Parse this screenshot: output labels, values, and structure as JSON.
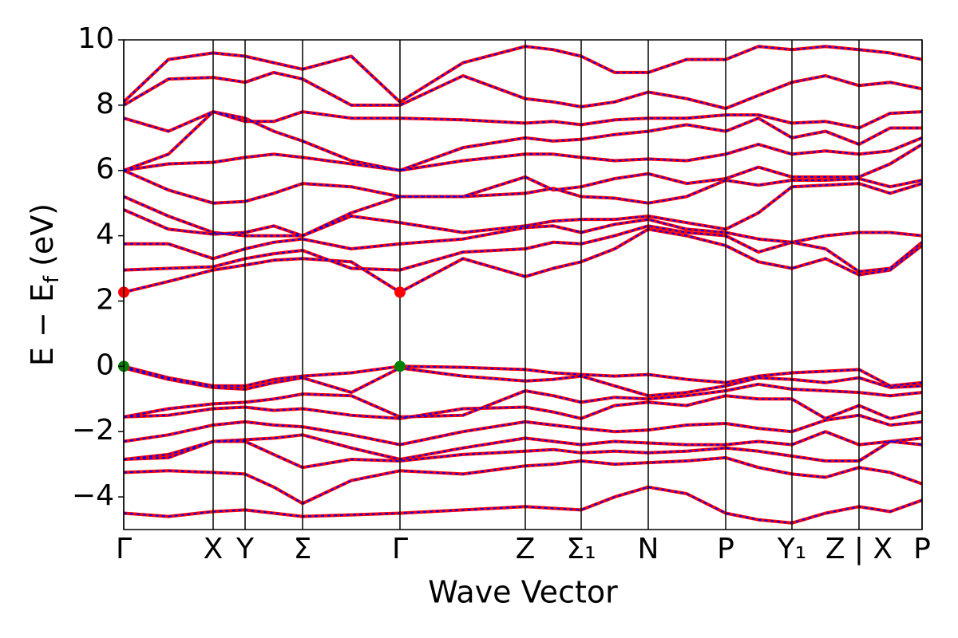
{
  "chart_data": {
    "type": "line",
    "xlabel": "Wave Vector",
    "ylabel": [
      "E − E",
      "f",
      " (eV)"
    ],
    "xlim": [
      0,
      1.0
    ],
    "ylim": [
      -5,
      10
    ],
    "xticks": [
      {
        "value": 0,
        "label": "Γ"
      },
      {
        "value": 0.112,
        "label": "X"
      },
      {
        "value": 0.152,
        "label": "Y"
      },
      {
        "value": 0.224,
        "label": "Σ"
      },
      {
        "value": 0.346,
        "label": "Γ"
      },
      {
        "value": 0.503,
        "label": "Z"
      },
      {
        "value": 0.573,
        "label": "Σ₁"
      },
      {
        "value": 0.657,
        "label": "N"
      },
      {
        "value": 0.754,
        "label": "P"
      },
      {
        "value": 0.837,
        "label": "Y₁"
      },
      {
        "value": 0.921,
        "label": "Z | X"
      },
      {
        "value": 1.0,
        "label": "P"
      }
    ],
    "yticks": [
      {
        "value": -4,
        "label": "−4"
      },
      {
        "value": -2,
        "label": "−2"
      },
      0,
      2,
      4,
      6,
      8,
      10
    ],
    "vlines": true,
    "x": [
      0,
      0.056,
      0.112,
      0.152,
      0.188,
      0.224,
      0.285,
      0.346,
      0.425,
      0.503,
      0.538,
      0.573,
      0.615,
      0.657,
      0.705,
      0.754,
      0.795,
      0.837,
      0.879,
      0.921,
      0.96,
      1.0
    ],
    "series": [
      {
        "color": "#ff0000",
        "style": "solid",
        "bands": [
          [
            0,
            -0.35,
            -0.6,
            -0.6,
            -0.4,
            -0.3,
            -0.2,
            0,
            -0.03,
            -0.1,
            -0.2,
            -0.25,
            -0.3,
            -0.25,
            -0.4,
            -0.5,
            -0.3,
            -0.2,
            -0.15,
            -0.1,
            -0.6,
            -0.5
          ],
          [
            -0.05,
            -0.4,
            -0.65,
            -0.7,
            -0.5,
            -0.35,
            -0.8,
            -0.05,
            -0.3,
            -0.45,
            -0.4,
            -0.3,
            -0.6,
            -0.9,
            -0.8,
            -0.6,
            -0.35,
            -0.4,
            -0.5,
            -0.35,
            -0.65,
            -0.6
          ],
          [
            -1.55,
            -1.3,
            -1.15,
            -1.1,
            -1.0,
            -0.85,
            -0.9,
            -1.55,
            -1.5,
            -0.75,
            -0.9,
            -1.1,
            -0.95,
            -1.0,
            -0.9,
            -0.75,
            -0.55,
            -0.7,
            -0.75,
            -0.8,
            -0.9,
            -0.8
          ],
          [
            -1.55,
            -1.5,
            -1.3,
            -1.25,
            -1.35,
            -1.3,
            -1.5,
            -1.6,
            -1.3,
            -1.25,
            -1.4,
            -1.6,
            -1.2,
            -1.1,
            -1.2,
            -0.9,
            -1.0,
            -1.0,
            -1.6,
            -1.2,
            -1.6,
            -1.4
          ],
          [
            -2.3,
            -2.1,
            -1.8,
            -1.7,
            -1.8,
            -1.85,
            -2.1,
            -2.4,
            -2.0,
            -1.7,
            -1.8,
            -1.9,
            -2.0,
            -1.95,
            -1.8,
            -1.75,
            -1.9,
            -2.0,
            -1.65,
            -1.5,
            -1.8,
            -1.7
          ],
          [
            -2.85,
            -2.7,
            -2.3,
            -2.25,
            -2.2,
            -2.1,
            -2.5,
            -2.85,
            -2.5,
            -2.2,
            -2.3,
            -2.4,
            -2.3,
            -2.35,
            -2.4,
            -2.4,
            -2.3,
            -2.4,
            -2.0,
            -2.4,
            -2.3,
            -2.2
          ],
          [
            -2.85,
            -2.8,
            -2.3,
            -2.3,
            -2.7,
            -3.1,
            -2.85,
            -2.9,
            -2.7,
            -2.6,
            -2.55,
            -2.65,
            -2.6,
            -2.65,
            -2.6,
            -2.5,
            -2.6,
            -2.75,
            -2.9,
            -2.9,
            -2.3,
            -2.4
          ],
          [
            -3.25,
            -3.2,
            -3.25,
            -3.3,
            -3.7,
            -4.2,
            -3.5,
            -3.2,
            -3.3,
            -3.05,
            -3.0,
            -2.9,
            -3.0,
            -2.95,
            -2.9,
            -2.8,
            -3.1,
            -3.3,
            -3.4,
            -3.1,
            -3.25,
            -3.6
          ],
          [
            -4.5,
            -4.6,
            -4.45,
            -4.4,
            -4.5,
            -4.6,
            -4.55,
            -4.5,
            -4.4,
            -4.3,
            -4.35,
            -4.4,
            -4.0,
            -3.7,
            -3.9,
            -4.5,
            -4.7,
            -4.8,
            -4.5,
            -4.3,
            -4.45,
            -4.1
          ],
          [
            2.27,
            2.6,
            2.95,
            3.1,
            3.25,
            3.3,
            3.2,
            2.27,
            3.3,
            2.75,
            3.0,
            3.2,
            3.6,
            4.2,
            4.0,
            3.7,
            3.2,
            3.0,
            3.3,
            2.8,
            2.95,
            3.7
          ],
          [
            2.95,
            3.0,
            3.05,
            3.3,
            3.45,
            3.55,
            3.0,
            2.95,
            3.5,
            3.6,
            3.8,
            3.75,
            4.0,
            4.3,
            4.1,
            4.0,
            3.5,
            3.8,
            3.6,
            2.9,
            3.0,
            3.8
          ],
          [
            3.75,
            3.75,
            3.3,
            3.6,
            3.8,
            3.9,
            3.6,
            3.75,
            3.9,
            4.25,
            4.3,
            4.1,
            4.35,
            4.5,
            4.2,
            4.1,
            3.9,
            3.8,
            4.0,
            4.1,
            4.1,
            4.0
          ],
          [
            4.8,
            4.2,
            4.05,
            4.1,
            4.3,
            4.0,
            4.6,
            4.4,
            4.1,
            4.3,
            4.45,
            4.5,
            4.5,
            4.6,
            4.4,
            4.2,
            4.7,
            5.5,
            5.55,
            5.6,
            5.3,
            5.6
          ],
          [
            5.2,
            4.6,
            4.1,
            4.0,
            4.0,
            4.0,
            4.7,
            5.2,
            5.2,
            5.3,
            5.45,
            5.2,
            5.15,
            5.0,
            5.2,
            5.7,
            5.55,
            5.7,
            5.7,
            5.75,
            5.5,
            5.7
          ],
          [
            6.0,
            5.4,
            5.0,
            5.05,
            5.3,
            5.6,
            5.5,
            5.2,
            5.2,
            5.8,
            5.4,
            5.5,
            5.75,
            5.9,
            5.6,
            5.75,
            6.1,
            5.8,
            5.8,
            5.8,
            6.2,
            6.8
          ],
          [
            6.0,
            6.2,
            6.25,
            6.4,
            6.5,
            6.4,
            6.2,
            6.0,
            6.3,
            6.5,
            6.5,
            6.4,
            6.3,
            6.35,
            6.3,
            6.5,
            6.8,
            6.5,
            6.6,
            6.5,
            6.6,
            7.0
          ],
          [
            6.0,
            6.5,
            7.8,
            7.6,
            7.2,
            6.9,
            6.3,
            6.0,
            6.7,
            7.0,
            6.9,
            6.95,
            7.1,
            7.2,
            7.4,
            7.2,
            7.6,
            7.0,
            7.2,
            6.8,
            7.3,
            7.3
          ],
          [
            7.6,
            7.2,
            7.8,
            7.5,
            7.5,
            7.8,
            7.6,
            7.6,
            7.55,
            7.45,
            7.5,
            7.4,
            7.55,
            7.6,
            7.6,
            7.7,
            7.7,
            7.45,
            7.5,
            7.3,
            7.75,
            7.8
          ],
          [
            8.0,
            8.8,
            8.85,
            8.7,
            9.0,
            8.8,
            8.0,
            8.0,
            8.9,
            8.2,
            8.1,
            7.95,
            8.1,
            8.4,
            8.2,
            7.9,
            8.3,
            8.7,
            8.9,
            8.6,
            8.7,
            8.5
          ],
          [
            8.1,
            9.4,
            9.6,
            9.5,
            9.3,
            9.1,
            9.5,
            8.1,
            9.3,
            9.8,
            9.7,
            9.5,
            9.0,
            9.0,
            9.4,
            9.4,
            9.8,
            9.7,
            9.8,
            9.7,
            9.6,
            9.4
          ]
        ]
      },
      {
        "color": "#0000ff",
        "style": "dashed",
        "bands": [
          [
            0,
            -0.35,
            -0.6,
            -0.6,
            -0.4,
            -0.3,
            -0.2,
            0,
            -0.03,
            -0.1,
            -0.2,
            -0.25,
            -0.3,
            -0.25,
            -0.4,
            -0.5,
            -0.3,
            -0.2,
            -0.15,
            -0.1,
            -0.6,
            -0.5
          ],
          [
            -0.05,
            -0.4,
            -0.65,
            -0.7,
            -0.5,
            -0.35,
            -0.8,
            -0.05,
            -0.3,
            -0.45,
            -0.4,
            -0.3,
            -0.6,
            -0.9,
            -0.8,
            -0.6,
            -0.35,
            -0.4,
            -0.5,
            -0.35,
            -0.65,
            -0.6
          ],
          [
            -1.55,
            -1.3,
            -1.15,
            -1.1,
            -1.0,
            -0.85,
            -0.9,
            -1.55,
            -1.5,
            -0.75,
            -0.9,
            -1.1,
            -0.95,
            -1.0,
            -0.9,
            -0.75,
            -0.55,
            -0.7,
            -0.75,
            -0.8,
            -0.9,
            -0.8
          ],
          [
            -1.55,
            -1.5,
            -1.3,
            -1.25,
            -1.35,
            -1.3,
            -1.5,
            -1.6,
            -1.3,
            -1.25,
            -1.4,
            -1.6,
            -1.2,
            -1.1,
            -1.2,
            -0.9,
            -1.0,
            -1.0,
            -1.6,
            -1.2,
            -1.6,
            -1.4
          ],
          [
            -2.3,
            -2.1,
            -1.8,
            -1.7,
            -1.8,
            -1.85,
            -2.1,
            -2.4,
            -2.0,
            -1.7,
            -1.8,
            -1.9,
            -2.0,
            -1.95,
            -1.8,
            -1.75,
            -1.9,
            -2.0,
            -1.65,
            -1.5,
            -1.8,
            -1.7
          ],
          [
            -2.85,
            -2.7,
            -2.3,
            -2.25,
            -2.2,
            -2.1,
            -2.5,
            -2.85,
            -2.5,
            -2.2,
            -2.3,
            -2.4,
            -2.3,
            -2.35,
            -2.4,
            -2.4,
            -2.3,
            -2.4,
            -2.0,
            -2.4,
            -2.3,
            -2.2
          ],
          [
            -2.85,
            -2.8,
            -2.3,
            -2.3,
            -2.7,
            -3.1,
            -2.85,
            -2.9,
            -2.7,
            -2.6,
            -2.55,
            -2.65,
            -2.6,
            -2.65,
            -2.6,
            -2.5,
            -2.6,
            -2.75,
            -2.9,
            -2.9,
            -2.3,
            -2.4
          ],
          [
            -3.25,
            -3.2,
            -3.25,
            -3.3,
            -3.7,
            -4.2,
            -3.5,
            -3.2,
            -3.3,
            -3.05,
            -3.0,
            -2.9,
            -3.0,
            -2.95,
            -2.9,
            -2.8,
            -3.1,
            -3.3,
            -3.4,
            -3.1,
            -3.25,
            -3.6
          ],
          [
            -4.5,
            -4.6,
            -4.45,
            -4.4,
            -4.5,
            -4.6,
            -4.55,
            -4.5,
            -4.4,
            -4.3,
            -4.35,
            -4.4,
            -4.0,
            -3.7,
            -3.9,
            -4.5,
            -4.7,
            -4.8,
            -4.5,
            -4.3,
            -4.45,
            -4.1
          ],
          [
            2.27,
            2.6,
            2.95,
            3.1,
            3.25,
            3.3,
            3.2,
            2.27,
            3.3,
            2.75,
            3.0,
            3.2,
            3.6,
            4.2,
            4.0,
            3.7,
            3.2,
            3.0,
            3.3,
            2.8,
            2.95,
            3.7
          ],
          [
            2.95,
            3.0,
            3.05,
            3.3,
            3.45,
            3.55,
            3.0,
            2.95,
            3.5,
            3.6,
            3.8,
            3.75,
            4.0,
            4.3,
            4.1,
            4.0,
            3.5,
            3.8,
            3.6,
            2.9,
            3.0,
            3.8
          ],
          [
            3.75,
            3.75,
            3.3,
            3.6,
            3.8,
            3.9,
            3.6,
            3.75,
            3.9,
            4.25,
            4.3,
            4.1,
            4.35,
            4.5,
            4.2,
            4.1,
            3.9,
            3.8,
            4.0,
            4.1,
            4.1,
            4.0
          ],
          [
            4.8,
            4.2,
            4.05,
            4.1,
            4.3,
            4.0,
            4.6,
            4.4,
            4.1,
            4.3,
            4.45,
            4.5,
            4.5,
            4.6,
            4.4,
            4.2,
            4.7,
            5.5,
            5.55,
            5.6,
            5.3,
            5.6
          ],
          [
            5.2,
            4.6,
            4.1,
            4.0,
            4.0,
            4.0,
            4.7,
            5.2,
            5.2,
            5.3,
            5.45,
            5.2,
            5.15,
            5.0,
            5.2,
            5.7,
            5.55,
            5.7,
            5.7,
            5.75,
            5.5,
            5.7
          ],
          [
            6.0,
            5.4,
            5.0,
            5.05,
            5.3,
            5.6,
            5.5,
            5.2,
            5.2,
            5.8,
            5.4,
            5.5,
            5.75,
            5.9,
            5.6,
            5.75,
            6.1,
            5.8,
            5.8,
            5.8,
            6.2,
            6.8
          ],
          [
            6.0,
            6.2,
            6.25,
            6.4,
            6.5,
            6.4,
            6.2,
            6.0,
            6.3,
            6.5,
            6.5,
            6.4,
            6.3,
            6.35,
            6.3,
            6.5,
            6.8,
            6.5,
            6.6,
            6.5,
            6.6,
            7.0
          ],
          [
            6.0,
            6.5,
            7.8,
            7.6,
            7.2,
            6.9,
            6.3,
            6.0,
            6.7,
            7.0,
            6.9,
            6.95,
            7.1,
            7.2,
            7.4,
            7.2,
            7.6,
            7.0,
            7.2,
            6.8,
            7.3,
            7.3
          ],
          [
            7.6,
            7.2,
            7.8,
            7.5,
            7.5,
            7.8,
            7.6,
            7.6,
            7.55,
            7.45,
            7.5,
            7.4,
            7.55,
            7.6,
            7.6,
            7.7,
            7.7,
            7.45,
            7.5,
            7.3,
            7.75,
            7.8
          ],
          [
            8.0,
            8.8,
            8.85,
            8.7,
            9.0,
            8.8,
            8.0,
            8.0,
            8.9,
            8.2,
            8.1,
            7.95,
            8.1,
            8.4,
            8.2,
            7.9,
            8.3,
            8.7,
            8.9,
            8.6,
            8.7,
            8.5
          ],
          [
            8.1,
            9.4,
            9.6,
            9.5,
            9.3,
            9.1,
            9.5,
            8.1,
            9.3,
            9.8,
            9.7,
            9.5,
            9.0,
            9.0,
            9.4,
            9.4,
            9.8,
            9.7,
            9.8,
            9.7,
            9.6,
            9.4
          ]
        ]
      }
    ],
    "points": [
      {
        "color": "#ff0000",
        "x": [
          0,
          0.346
        ],
        "y": [
          2.27,
          2.27
        ]
      },
      {
        "color": "#008000",
        "x": [
          0,
          0.346
        ],
        "y": [
          0,
          0
        ]
      }
    ]
  }
}
